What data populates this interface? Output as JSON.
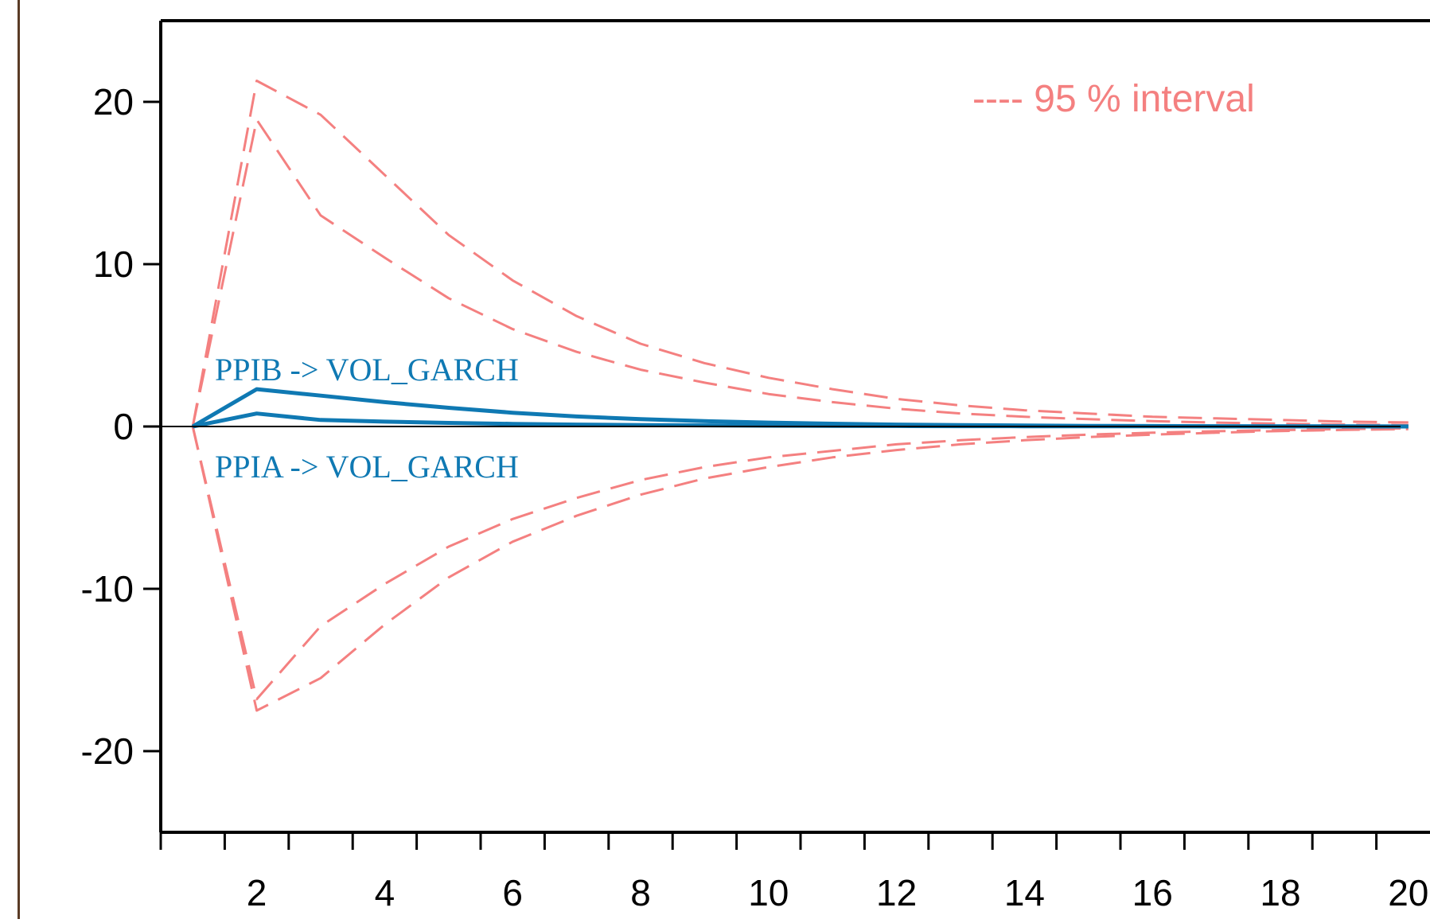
{
  "chart_data": {
    "type": "line",
    "x": [
      1,
      2,
      3,
      4,
      5,
      6,
      7,
      8,
      9,
      10,
      11,
      12,
      13,
      14,
      15,
      16,
      17,
      18,
      19,
      20
    ],
    "xlim": [
      0.5,
      20.5
    ],
    "ylim": [
      -25,
      25
    ],
    "x_tick_labels": [
      "2",
      "4",
      "6",
      "8",
      "10",
      "12",
      "14",
      "16",
      "18",
      "20"
    ],
    "y_tick_labels": [
      "20",
      "10",
      "0",
      "-10",
      "-20"
    ],
    "y_ticks": [
      20,
      10,
      0,
      -10,
      -20
    ],
    "zero_line": true,
    "grid": false,
    "series": [
      {
        "name": "PPIB -> VOL_GARCH",
        "style": "solid",
        "color": "#0f79b3",
        "values": [
          0,
          2.3,
          1.9,
          1.5,
          1.15,
          0.85,
          0.62,
          0.45,
          0.33,
          0.24,
          0.17,
          0.12,
          0.09,
          0.06,
          0.04,
          0.03,
          0.02,
          0.015,
          0.01,
          0.005
        ]
      },
      {
        "name": "PPIA -> VOL_GARCH",
        "style": "solid",
        "color": "#0f79b3",
        "values": [
          0,
          0.8,
          0.4,
          0.3,
          0.22,
          0.16,
          0.12,
          0.09,
          0.07,
          0.05,
          0.04,
          0.03,
          0.02,
          0.015,
          0.01,
          0.008,
          0.006,
          0.004,
          0.003,
          0.002
        ]
      },
      {
        "name": "95 % interval",
        "style": "dashed",
        "color": "#f48080",
        "values": [
          0,
          21.3,
          19.2,
          15.5,
          11.8,
          9.0,
          6.8,
          5.1,
          3.9,
          3.0,
          2.3,
          1.7,
          1.3,
          1.0,
          0.8,
          0.6,
          0.5,
          0.4,
          0.3,
          0.25
        ]
      },
      {
        "style": "dashed",
        "color": "#f48080",
        "values": [
          0,
          18.9,
          13.0,
          10.4,
          7.9,
          6.0,
          4.6,
          3.5,
          2.7,
          2.0,
          1.5,
          1.1,
          0.8,
          0.6,
          0.45,
          0.33,
          0.24,
          0.17,
          0.12,
          0.09
        ]
      },
      {
        "style": "dashed",
        "color": "#f48080",
        "values": [
          0,
          -16.8,
          -12.3,
          -9.7,
          -7.4,
          -5.7,
          -4.4,
          -3.3,
          -2.5,
          -1.9,
          -1.5,
          -1.1,
          -0.85,
          -0.65,
          -0.5,
          -0.38,
          -0.29,
          -0.22,
          -0.16,
          -0.12
        ]
      },
      {
        "style": "dashed",
        "color": "#f48080",
        "values": [
          0,
          -17.5,
          -15.5,
          -12.2,
          -9.3,
          -7.1,
          -5.5,
          -4.2,
          -3.2,
          -2.5,
          -1.9,
          -1.45,
          -1.1,
          -0.85,
          -0.65,
          -0.5,
          -0.38,
          -0.28,
          -0.21,
          -0.16
        ]
      }
    ],
    "annotations": [
      {
        "text": "PPIB -> VOL_GARCH",
        "color": "#0f79b3"
      },
      {
        "text": "PPIA -> VOL_GARCH",
        "color": "#0f79b3"
      }
    ],
    "legend": {
      "text": "---- 95 % interval",
      "placement": "top-right",
      "color": "#f48080"
    }
  }
}
